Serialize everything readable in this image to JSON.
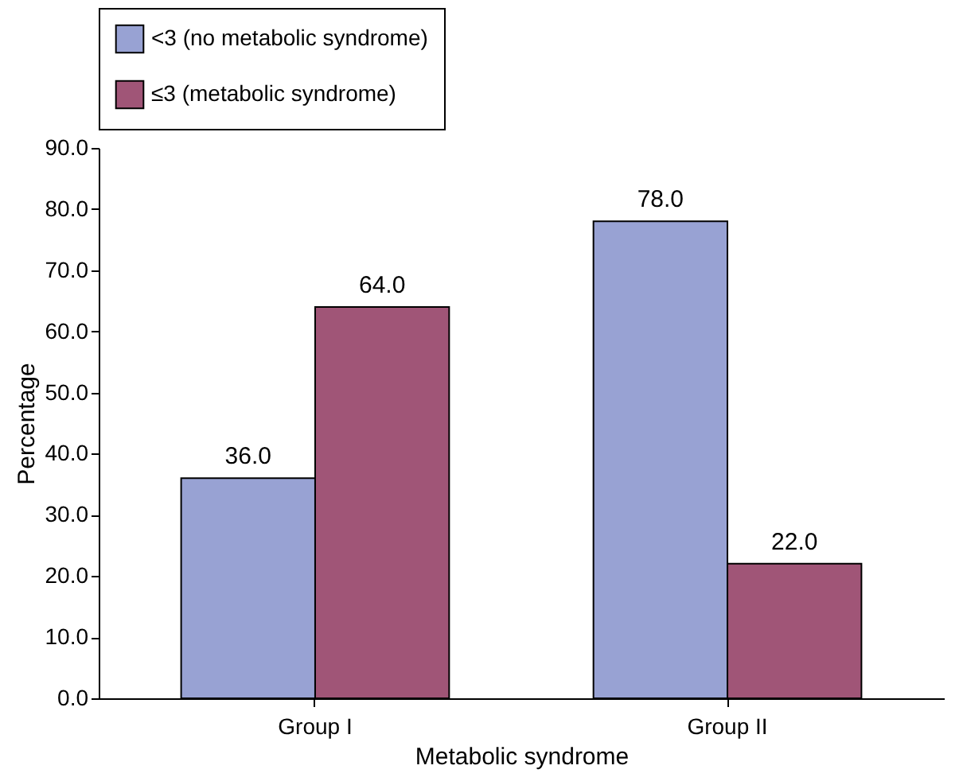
{
  "chart_data": {
    "type": "bar",
    "xlabel": "Metabolic syndrome",
    "ylabel": "Percentage",
    "categories": [
      "Group I",
      "Group II"
    ],
    "series": [
      {
        "name": "<3 (no metabolic syndrome)",
        "color": "#98a2d3",
        "values": [
          36.0,
          78.0
        ],
        "value_labels": [
          "36.0",
          "78.0"
        ]
      },
      {
        "name": "≤3 (metabolic syndrome)",
        "color": "#a05577",
        "values": [
          64.0,
          22.0
        ],
        "value_labels": [
          "64.0",
          "22.0"
        ]
      }
    ],
    "ylim": [
      0,
      90
    ],
    "yticks": [
      {
        "value": 0,
        "label": "0.0"
      },
      {
        "value": 10,
        "label": "10.0"
      },
      {
        "value": 20,
        "label": "20.0"
      },
      {
        "value": 30,
        "label": "30.0"
      },
      {
        "value": 40,
        "label": "40.0"
      },
      {
        "value": 50,
        "label": "50.0"
      },
      {
        "value": 60,
        "label": "60.0"
      },
      {
        "value": 70,
        "label": "70.0"
      },
      {
        "value": 80,
        "label": "80.0"
      },
      {
        "value": 90,
        "label": "90.0"
      }
    ],
    "grid": false,
    "legend": "top"
  }
}
